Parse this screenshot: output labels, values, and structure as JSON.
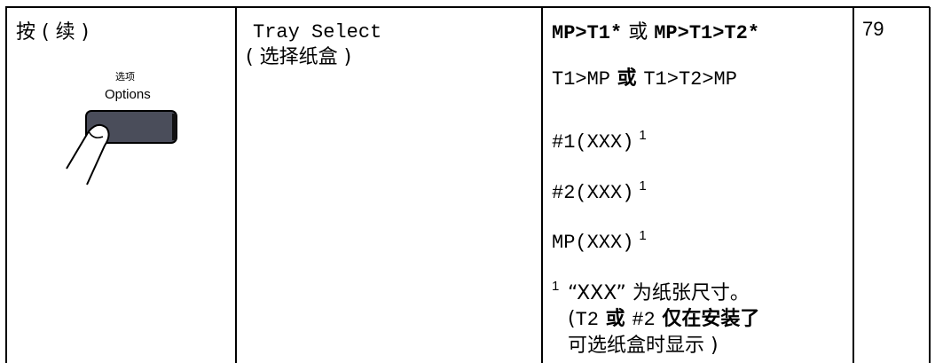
{
  "header": {
    "press": "按 ( 续 )",
    "button_cn": "选项",
    "button_en": "Options"
  },
  "setting": {
    "name": "Tray Select",
    "name_cn": "( 选择纸盒 )"
  },
  "options": [
    {
      "parts": [
        "MP>T1*",
        " 或 ",
        "MP>T1>T2*"
      ]
    },
    {
      "parts": [
        "T1>MP",
        " 或 ",
        "T1>T2>MP"
      ]
    },
    {
      "parts": [
        "#1(XXX)"
      ],
      "note": "1"
    },
    {
      "parts": [
        "#2(XXX)"
      ],
      "note": "1"
    },
    {
      "parts": [
        "MP(XXX)"
      ],
      "note": "1"
    }
  ],
  "footnote": {
    "mark": "1",
    "line1": [
      "“XXX” 为纸张尺寸。"
    ],
    "line2": [
      "(",
      "T2",
      " 或 ",
      "#2",
      " 仅在安装了"
    ],
    "line3": "可选纸盒时显示 )"
  },
  "page": "79"
}
